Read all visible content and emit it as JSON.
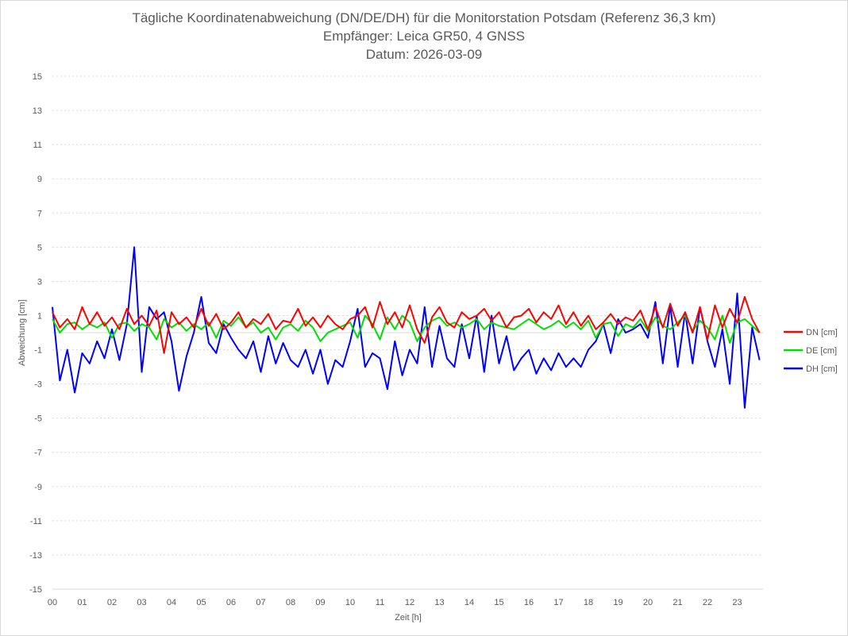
{
  "chart_data": {
    "type": "line",
    "title": [
      "Tägliche Koordinatenabweichung (DN/DE/DH) für die Monitorstation Potsdam (Referenz 36,3 km)",
      "Empfänger: Leica GR50, 4 GNSS",
      "Datum: 2026-03-09"
    ],
    "xlabel": "Zeit [h]",
    "ylabel": "Abweichung [cm]",
    "xlim": [
      0,
      24
    ],
    "ylim": [
      -15,
      15
    ],
    "x_ticks": [
      "00",
      "01",
      "02",
      "03",
      "04",
      "05",
      "06",
      "07",
      "08",
      "09",
      "10",
      "11",
      "12",
      "13",
      "14",
      "15",
      "16",
      "17",
      "18",
      "19",
      "20",
      "21",
      "22",
      "23"
    ],
    "y_ticks": [
      15,
      13,
      11,
      9,
      7,
      5,
      3,
      1,
      -1,
      -3,
      -5,
      -7,
      -9,
      -11,
      -13,
      -15
    ],
    "grid": "horizontal dotted",
    "legend_position": "right",
    "x_start_h": 0,
    "x_step_h": 0.25,
    "series": [
      {
        "name": "DN [cm]",
        "color": "#ff0000",
        "values": [
          1.2,
          0.3,
          0.8,
          0.2,
          1.5,
          0.5,
          1.2,
          0.4,
          0.9,
          0.2,
          1.4,
          0.5,
          1.0,
          0.4,
          1.3,
          -1.2,
          1.2,
          0.5,
          0.9,
          0.3,
          1.4,
          0.4,
          1.1,
          0.2,
          0.6,
          1.2,
          0.3,
          0.8,
          0.5,
          1.1,
          0.2,
          0.7,
          0.6,
          1.4,
          0.4,
          0.9,
          0.3,
          1.0,
          0.5,
          0.2,
          0.8,
          1.0,
          1.5,
          0.3,
          1.8,
          0.5,
          1.2,
          0.3,
          1.6,
          0.2,
          -0.6,
          0.9,
          1.5,
          0.6,
          0.3,
          1.2,
          0.8,
          1.0,
          1.4,
          0.7,
          1.2,
          0.3,
          0.9,
          1.0,
          1.4,
          0.6,
          1.2,
          0.8,
          1.6,
          0.5,
          1.2,
          0.4,
          1.0,
          0.2,
          0.6,
          1.1,
          0.5,
          0.9,
          0.7,
          1.3,
          0.2,
          1.5,
          0.3,
          1.7,
          0.4,
          1.2,
          0.0,
          1.5,
          -0.4,
          1.6,
          0.3,
          1.4,
          0.6,
          2.1,
          0.8,
          0.0
        ]
      },
      {
        "name": "DE [cm]",
        "color": "#00e000",
        "values": [
          0.8,
          0.0,
          0.5,
          0.6,
          0.2,
          0.5,
          0.3,
          0.6,
          -0.3,
          0.5,
          0.6,
          0.1,
          0.5,
          0.3,
          -0.4,
          0.8,
          0.3,
          0.6,
          0.1,
          0.5,
          0.2,
          0.6,
          -0.3,
          0.7,
          0.4,
          0.9,
          0.3,
          0.6,
          0.0,
          0.3,
          -0.4,
          0.3,
          0.5,
          0.1,
          0.7,
          0.3,
          -0.5,
          0.0,
          0.2,
          0.4,
          0.6,
          -0.3,
          1.0,
          0.5,
          -0.4,
          0.9,
          0.2,
          1.0,
          0.6,
          -0.5,
          0.3,
          0.7,
          0.9,
          0.4,
          0.6,
          0.3,
          0.5,
          0.8,
          0.2,
          0.6,
          0.4,
          0.3,
          0.2,
          0.5,
          0.8,
          0.5,
          0.2,
          0.4,
          0.7,
          0.3,
          0.6,
          0.2,
          0.7,
          -0.3,
          0.5,
          0.6,
          -0.2,
          0.5,
          0.3,
          0.8,
          0.1,
          0.9,
          0.4,
          0.2,
          0.6,
          1.0,
          0.1,
          0.7,
          0.3,
          -0.4,
          1.0,
          -0.6,
          0.6,
          0.8,
          0.4,
          0.0
        ]
      },
      {
        "name": "DH [cm]",
        "color": "#0000ff",
        "values": [
          1.5,
          -2.8,
          -1.0,
          -3.5,
          -1.2,
          -1.8,
          -0.5,
          -1.5,
          0.2,
          -1.6,
          0.5,
          5.0,
          -2.3,
          1.5,
          0.8,
          1.2,
          -0.5,
          -3.4,
          -1.4,
          0.0,
          2.1,
          -0.6,
          -1.2,
          0.5,
          -0.3,
          -1.0,
          -1.5,
          -0.5,
          -2.3,
          -0.2,
          -1.8,
          -0.6,
          -1.6,
          -2.0,
          -1.0,
          -2.4,
          -1.0,
          -3.0,
          -1.6,
          -2.0,
          -0.5,
          1.4,
          -2.0,
          -1.2,
          -1.5,
          -3.3,
          -0.5,
          -2.5,
          -1.0,
          -1.8,
          1.5,
          -2.0,
          0.4,
          -1.5,
          -2.0,
          0.5,
          -1.5,
          1.0,
          -2.3,
          1.0,
          -1.8,
          -0.2,
          -2.2,
          -1.5,
          -1.0,
          -2.4,
          -1.5,
          -2.2,
          -1.2,
          -2.0,
          -1.5,
          -2.0,
          -1.0,
          -0.5,
          0.5,
          -1.2,
          0.8,
          0.0,
          0.2,
          0.5,
          -0.3,
          1.8,
          -1.8,
          1.6,
          -2.0,
          1.2,
          -1.8,
          1.5,
          -0.5,
          -2.0,
          0.2,
          -3.0,
          2.3,
          -4.4,
          0.3,
          -1.6
        ]
      }
    ]
  }
}
